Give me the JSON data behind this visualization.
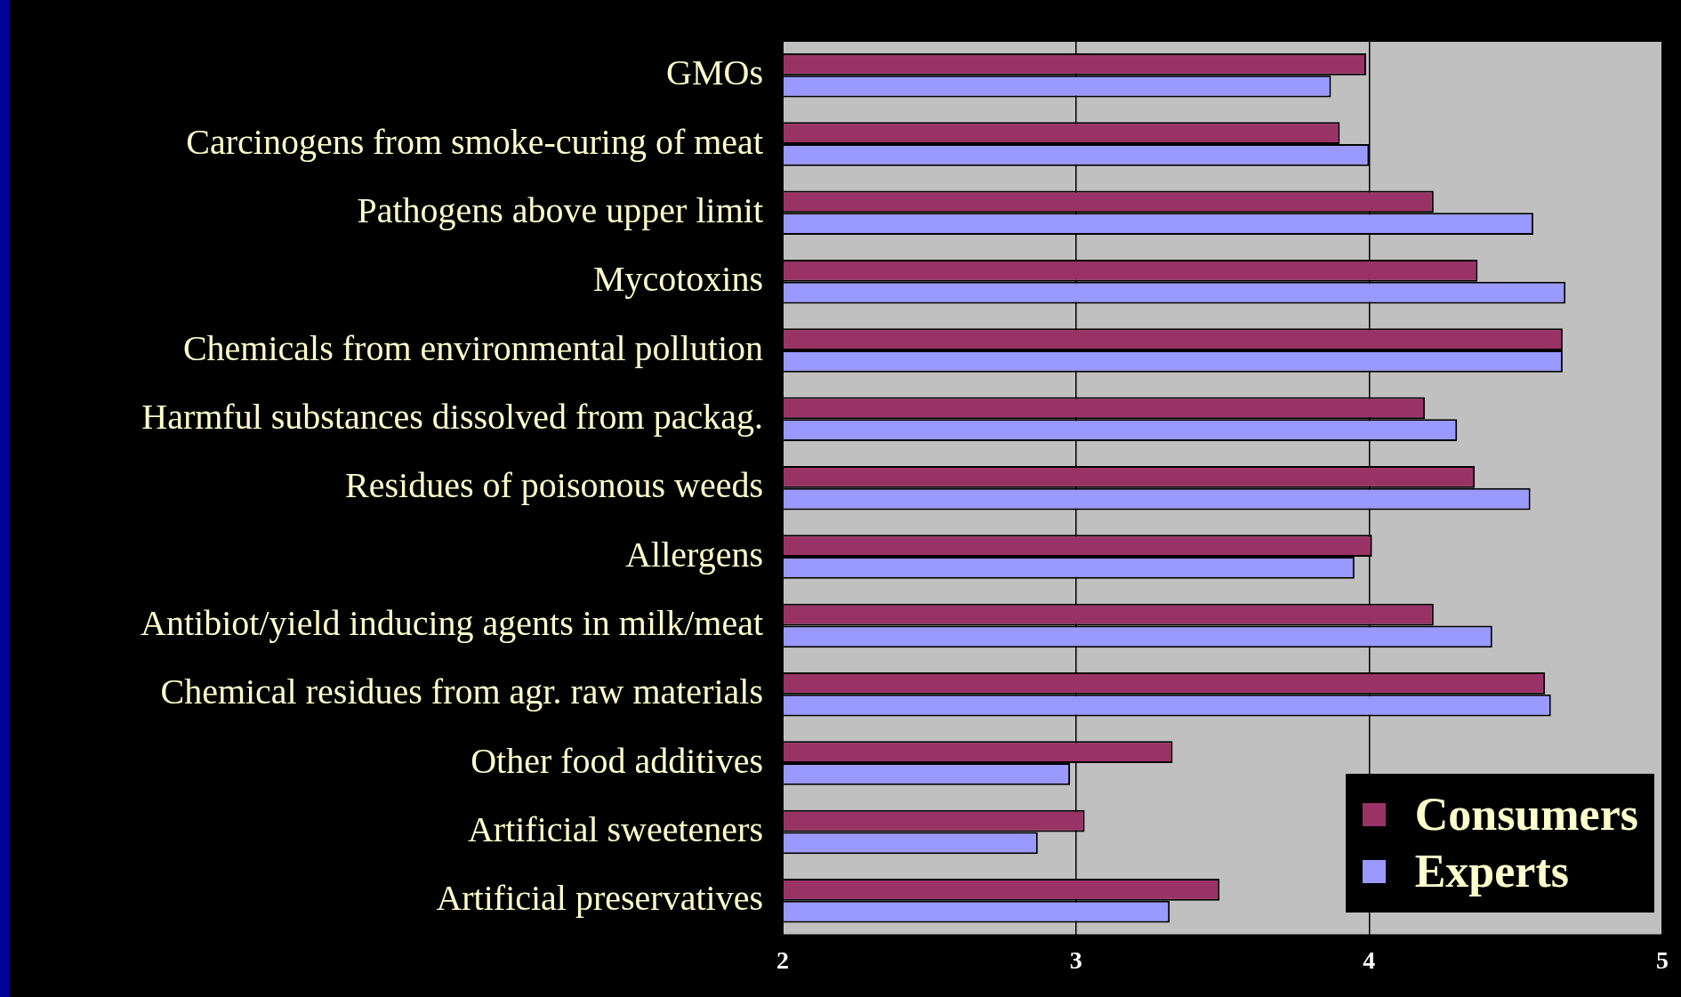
{
  "chart_data": {
    "type": "bar",
    "orientation": "horizontal",
    "categories": [
      "GMOs",
      "Carcinogens from smoke-curing of meat",
      "Pathogens above upper limit",
      "Mycotoxins",
      "Chemicals from environmental pollution",
      "Harmful substances dissolved from packag.",
      "Residues of poisonous weeds",
      "Allergens",
      "Antibiot/yield inducing agents in milk/meat",
      "Chemical residues from agr. raw materials",
      "Other food additives",
      "Artificial sweeteners",
      "Artificial preservatives"
    ],
    "series": [
      {
        "name": "Consumers",
        "color": "#993366",
        "values": [
          3.99,
          3.9,
          4.22,
          4.37,
          4.66,
          4.19,
          4.36,
          4.01,
          4.22,
          4.6,
          3.33,
          3.03,
          3.49
        ]
      },
      {
        "name": "Experts",
        "color": "#9999ff",
        "values": [
          3.87,
          4.0,
          4.56,
          4.67,
          4.66,
          4.3,
          4.55,
          3.95,
          4.42,
          4.62,
          2.98,
          2.87,
          3.32
        ]
      }
    ],
    "xlim": [
      2,
      5
    ],
    "xticks": [
      2,
      3,
      4,
      5
    ],
    "grid": "x",
    "legend": "bottom right"
  }
}
